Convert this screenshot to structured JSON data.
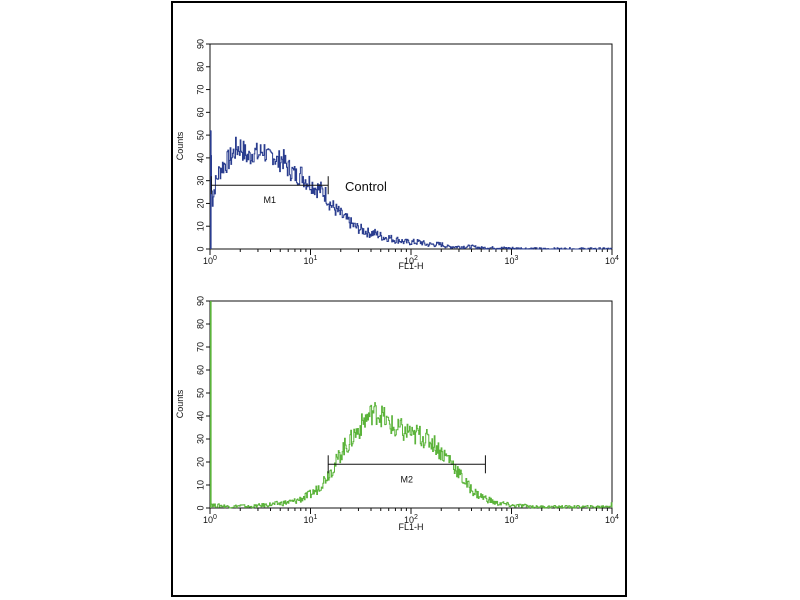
{
  "chart_data": [
    {
      "type": "histogram",
      "xlabel": "FL1-H",
      "ylabel": "Counts",
      "xscale": "log",
      "xlim": [
        1,
        10000
      ],
      "ylim": [
        0,
        90
      ],
      "yticks": [
        "0",
        "10",
        "20",
        "30",
        "40",
        "50",
        "60",
        "70",
        "80",
        "90"
      ],
      "xticks": [
        {
          "base": "10",
          "exp": "0"
        },
        {
          "base": "10",
          "exp": "1"
        },
        {
          "base": "10",
          "exp": "2"
        },
        {
          "base": "10",
          "exp": "3"
        },
        {
          "base": "10",
          "exp": "4"
        }
      ],
      "line_color": "#2a3d8f",
      "annotation": "Control",
      "marker": {
        "label": "M1",
        "x_start": 1.03,
        "x_end": 15,
        "y": 28
      },
      "series": [
        {
          "x": [
            1.0,
            1.05,
            1.1,
            1.2,
            1.3,
            1.45,
            1.6,
            1.8,
            2.0,
            2.2,
            2.4,
            2.7,
            3.0,
            3.4,
            3.8,
            4.2,
            4.7,
            5.2,
            5.8,
            6.5,
            7.2,
            8.0,
            9.0,
            10,
            11,
            12.5,
            14,
            15.5,
            17,
            19,
            21,
            24,
            27,
            30,
            34,
            38,
            43,
            48,
            54,
            60,
            68,
            76,
            85,
            95,
            110,
            125,
            140,
            160,
            180,
            200,
            230,
            260,
            300,
            350,
            400,
            500,
            700,
            1000,
            2000,
            5000,
            10000
          ],
          "y": [
            52,
            20,
            27,
            33,
            36,
            38,
            40,
            44,
            45,
            42,
            40,
            43,
            41,
            44,
            39,
            42,
            38,
            40,
            36,
            34,
            32,
            33,
            30,
            29,
            27,
            26,
            24,
            20,
            18,
            16,
            14,
            12,
            10,
            9,
            8,
            7,
            7,
            6,
            5,
            5,
            4,
            4,
            3,
            3,
            3,
            3,
            2,
            2,
            2,
            2,
            1,
            1,
            1,
            1,
            1,
            0.5,
            0.5,
            0.3,
            0,
            0,
            0
          ]
        }
      ]
    },
    {
      "type": "histogram",
      "xlabel": "FL1-H",
      "ylabel": "Counts",
      "xscale": "log",
      "xlim": [
        1,
        10000
      ],
      "ylim": [
        0,
        90
      ],
      "yticks": [
        "0",
        "10",
        "20",
        "30",
        "40",
        "50",
        "60",
        "70",
        "80",
        "90"
      ],
      "xticks": [
        {
          "base": "10",
          "exp": "0"
        },
        {
          "base": "10",
          "exp": "1"
        },
        {
          "base": "10",
          "exp": "2"
        },
        {
          "base": "10",
          "exp": "3"
        },
        {
          "base": "10",
          "exp": "4"
        }
      ],
      "line_color": "#5bb33a",
      "marker": {
        "label": "M2",
        "x_start": 15,
        "x_end": 550,
        "y": 19
      },
      "series": [
        {
          "x": [
            1.0,
            1.01,
            1.1,
            1.3,
            1.6,
            2.0,
            2.5,
            3.0,
            4.0,
            5.0,
            6.0,
            7.0,
            8.0,
            9.0,
            10,
            11.5,
            13,
            15,
            17,
            19,
            21,
            24,
            27,
            30,
            34,
            38,
            42,
            47,
            52,
            58,
            64,
            70,
            78,
            86,
            95,
            105,
            115,
            125,
            140,
            155,
            170,
            190,
            210,
            235,
            260,
            290,
            320,
            360,
            400,
            450,
            500,
            560,
            630,
            700,
            800,
            1000,
            1300,
            1700,
            2200,
            3000,
            4000,
            5500,
            7500,
            9800,
            9900,
            10000
          ],
          "y": [
            90,
            2,
            1,
            1,
            0.5,
            1,
            0.5,
            1,
            1.5,
            2,
            2.5,
            3,
            4,
            5,
            6,
            8,
            11,
            15,
            18,
            22,
            26,
            28,
            32,
            34,
            38,
            40,
            42,
            41,
            40,
            37,
            36,
            33,
            35,
            32,
            34,
            30,
            33,
            31,
            30,
            29,
            28,
            25,
            23,
            22,
            19,
            16,
            13,
            10,
            8,
            6,
            5,
            4,
            3,
            2,
            2,
            1,
            1,
            0.5,
            0.5,
            0.5,
            0.5,
            0.5,
            0.5,
            1,
            9,
            0
          ]
        }
      ]
    }
  ]
}
